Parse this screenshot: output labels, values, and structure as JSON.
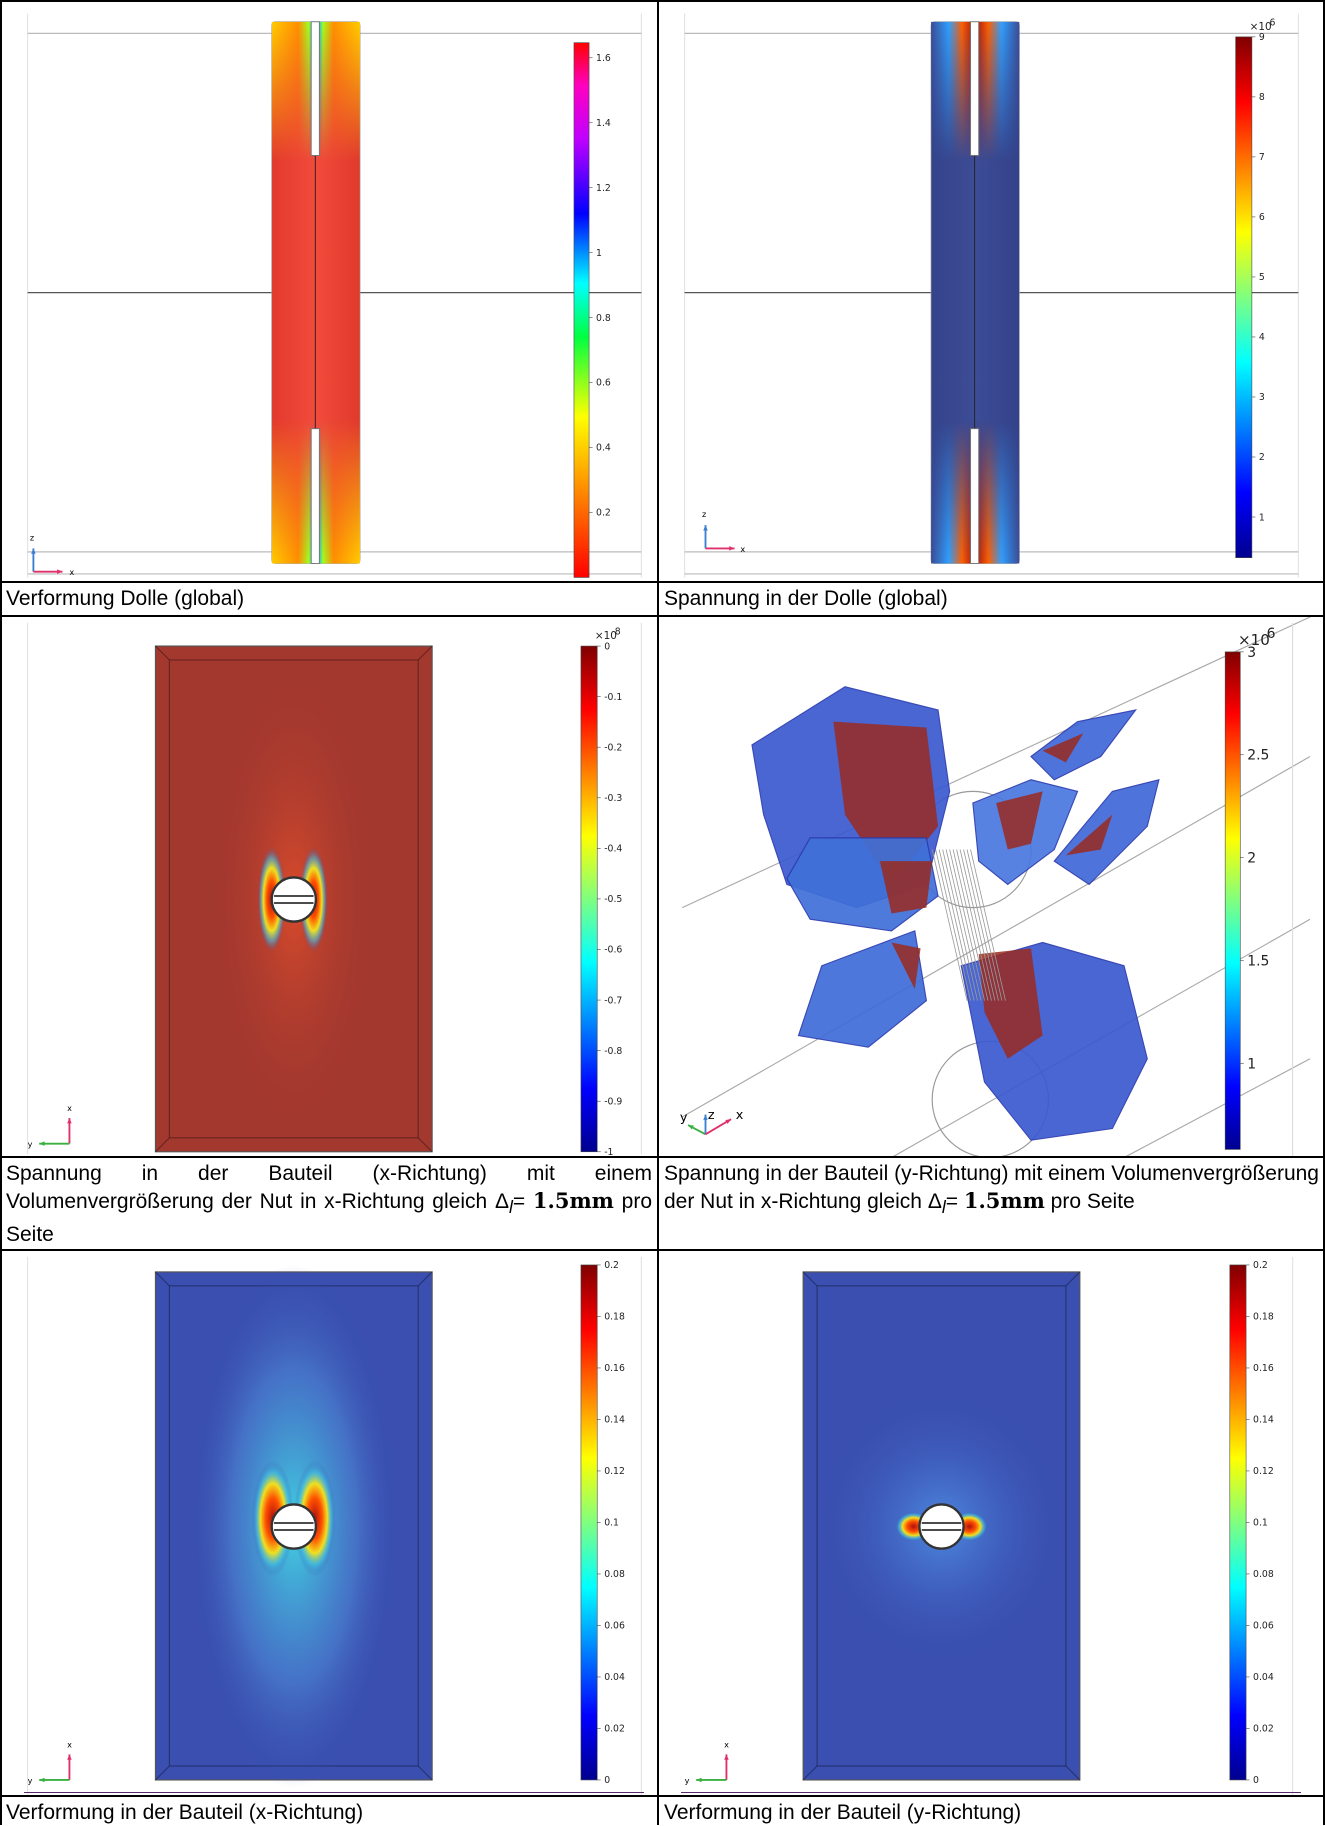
{
  "panels": [
    {
      "caption": "Verformung Dolle (global)",
      "colorbar": {
        "ticks": [
          "1.6",
          "1.4",
          "1.2",
          "1",
          "0.8",
          "0.6",
          "0.4",
          "0.2"
        ]
      },
      "axes": [
        "z",
        "x"
      ]
    },
    {
      "caption": "Spannung in der Dolle (global)",
      "colorbar": {
        "multiplier": "×10",
        "exponent": "6",
        "ticks": [
          "9",
          "8",
          "7",
          "6",
          "5",
          "4",
          "3",
          "2",
          "1"
        ]
      },
      "axes": [
        "z",
        "x"
      ]
    },
    {
      "caption": {
        "text": "Spannung in der Bauteil (x-Richtung) mit einem Volumenvergrößerung der Nut in x-Richtung gleich",
        "symbol": "Δ",
        "subscript": "l",
        "equals": "=",
        "amount": "1.5mm",
        "tail": "pro Seite"
      },
      "colorbar": {
        "multiplier": "×10",
        "exponent": "8",
        "ticks": [
          "0",
          "-0.1",
          "-0.2",
          "-0.3",
          "-0.4",
          "-0.5",
          "-0.6",
          "-0.7",
          "-0.8",
          "-0.9",
          "-1"
        ]
      },
      "axes": [
        "x",
        "y"
      ]
    },
    {
      "caption": {
        "text": "Spannung in der Bauteil (y-Richtung) mit einem Volumenvergrößerung der Nut in x-Richtung gleich",
        "symbol": "Δ",
        "subscript": "l",
        "equals": "=",
        "amount": "1.5mm",
        "tail": "pro Seite"
      },
      "colorbar": {
        "multiplier": "×10",
        "exponent": "6",
        "ticks": [
          "3",
          "2.5",
          "2",
          "1.5",
          "1"
        ]
      },
      "axes": [
        "y",
        "z",
        "x"
      ]
    },
    {
      "caption": "Verformung in der Bauteil (x-Richtung)",
      "colorbar": {
        "ticks": [
          "0.2",
          "0.18",
          "0.16",
          "0.14",
          "0.12",
          "0.1",
          "0.08",
          "0.06",
          "0.04",
          "0.02",
          "0"
        ]
      },
      "axes": [
        "x",
        "y"
      ]
    },
    {
      "caption": "Verformung in der Bauteil (y-Richtung)",
      "colorbar": {
        "ticks": [
          "0.2",
          "0.18",
          "0.16",
          "0.14",
          "0.12",
          "0.1",
          "0.08",
          "0.06",
          "0.04",
          "0.02",
          "0"
        ]
      },
      "axes": [
        "x",
        "y"
      ]
    }
  ]
}
